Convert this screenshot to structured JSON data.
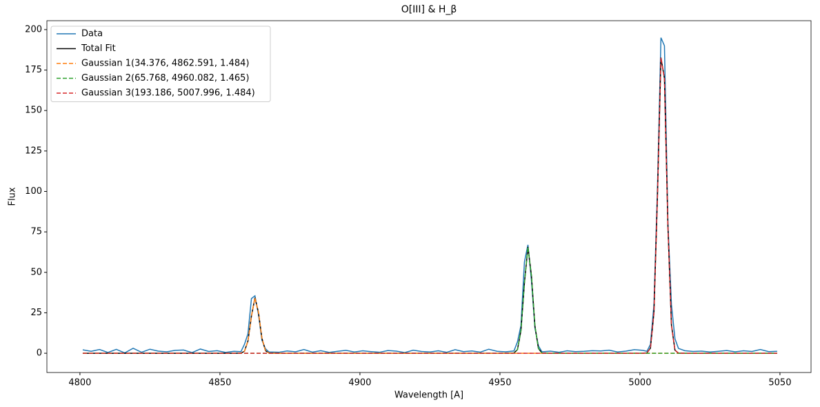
{
  "chart_data": {
    "type": "line",
    "title": "O[III] & H_β",
    "x_label": "Wavelength [A]",
    "y_label": "Flux",
    "xlim": [
      4788.2,
      5061.1
    ],
    "ylim": [
      -11.9,
      205.5
    ],
    "xticks": [
      4800,
      4850,
      4900,
      4950,
      5000,
      5050
    ],
    "yticks": [
      0,
      25,
      50,
      75,
      100,
      125,
      150,
      175,
      200
    ],
    "grid": false,
    "legend": "upper left",
    "x": [
      4801,
      4804,
      4807,
      4810,
      4813,
      4816,
      4819,
      4822,
      4825,
      4828,
      4831,
      4834,
      4837,
      4840,
      4843,
      4846,
      4849,
      4852,
      4855,
      4857.5,
      4858.75,
      4860,
      4861.25,
      4862.5,
      4863.75,
      4865,
      4866.25,
      4867.5,
      4871,
      4874,
      4877,
      4880,
      4883,
      4886,
      4889,
      4892,
      4895,
      4898,
      4901,
      4904,
      4907,
      4910,
      4913,
      4916,
      4919,
      4922,
      4925,
      4928,
      4931,
      4934,
      4937,
      4940,
      4943,
      4946,
      4949,
      4952,
      4955,
      4956.25,
      4957.5,
      4958.75,
      4960,
      4961.25,
      4962.5,
      4963.75,
      4965,
      4968,
      4971,
      4974,
      4977,
      4980,
      4983,
      4986,
      4989,
      4992,
      4995,
      4998,
      5001,
      5002.5,
      5003.75,
      5005,
      5006.25,
      5007.5,
      5008.75,
      5010,
      5011.25,
      5012.5,
      5013.75,
      5016,
      5019,
      5022,
      5025,
      5028,
      5031,
      5034,
      5037,
      5040,
      5043,
      5046,
      5049
    ],
    "series": [
      {
        "name": "Data",
        "color": "#1f77b4",
        "linestyle": "solid",
        "values": [
          2.1,
          1.2,
          2.3,
          0.5,
          2.4,
          0.2,
          3.1,
          0.6,
          2.5,
          1.3,
          0.9,
          1.8,
          2.0,
          0.4,
          2.6,
          1.1,
          1.6,
          0.5,
          1.2,
          1.0,
          5.5,
          12.0,
          33.8,
          35.5,
          24.0,
          8.0,
          2.8,
          0.8,
          0.6,
          1.4,
          0.9,
          2.3,
          0.7,
          1.6,
          0.5,
          1.2,
          1.8,
          0.8,
          1.5,
          1.0,
          0.6,
          1.7,
          1.3,
          0.4,
          1.9,
          1.1,
          0.8,
          1.5,
          0.6,
          2.2,
          1.0,
          1.4,
          0.7,
          2.5,
          1.2,
          0.9,
          1.4,
          7.0,
          17.0,
          56.5,
          67.0,
          45.0,
          15.5,
          4.5,
          0.9,
          1.3,
          0.6,
          1.5,
          1.0,
          1.2,
          1.6,
          1.4,
          1.9,
          0.8,
          1.3,
          2.2,
          1.8,
          1.2,
          5.5,
          30.0,
          102.0,
          195.0,
          190.0,
          80.0,
          30.0,
          9.0,
          3.0,
          1.6,
          1.1,
          1.3,
          0.8,
          1.2,
          1.7,
          0.9,
          1.5,
          1.1,
          2.3,
          1.0,
          1.2
        ]
      },
      {
        "name": "Total Fit",
        "color": "#000000",
        "linestyle": "solid",
        "values": [
          0,
          0,
          0,
          0,
          0,
          0,
          0,
          0,
          0,
          0,
          0,
          0,
          0,
          0,
          0,
          0,
          0,
          0,
          0,
          0.1,
          1.2,
          7.5,
          22.9,
          34.3,
          25.3,
          9.2,
          1.6,
          0.1,
          0,
          0,
          0,
          0,
          0,
          0,
          0,
          0,
          0,
          0,
          0,
          0,
          0,
          0,
          0,
          0,
          0,
          0,
          0,
          0,
          0,
          0,
          0,
          0,
          0,
          0,
          0,
          0,
          0.2,
          2.2,
          13.9,
          43.5,
          65.7,
          47.9,
          16.8,
          2.9,
          0.2,
          0,
          0,
          0,
          0,
          0,
          0,
          0,
          0,
          0,
          0,
          0,
          0,
          0.2,
          3.2,
          25.1,
          96.7,
          182.7,
          169.8,
          77.6,
          17.5,
          1.9,
          0.1,
          0,
          0,
          0,
          0,
          0,
          0,
          0,
          0,
          0,
          0,
          0,
          0
        ]
      },
      {
        "name": "Gaussian 1(34.376, 4862.591, 1.484)",
        "color": "#ff7f0e",
        "linestyle": "dashed",
        "values": [
          0,
          0,
          0,
          0,
          0,
          0,
          0,
          0,
          0,
          0,
          0,
          0,
          0,
          0,
          0,
          0,
          0,
          0,
          0,
          0.1,
          1.2,
          7.5,
          22.9,
          34.3,
          25.3,
          9.2,
          1.6,
          0.1,
          0,
          0,
          0,
          0,
          0,
          0,
          0,
          0,
          0,
          0,
          0,
          0,
          0,
          0,
          0,
          0,
          0,
          0,
          0,
          0,
          0,
          0,
          0,
          0,
          0,
          0,
          0,
          0,
          0,
          0,
          0,
          0,
          0,
          0,
          0,
          0,
          0,
          0,
          0,
          0,
          0,
          0,
          0,
          0,
          0,
          0,
          0,
          0,
          0,
          0,
          0,
          0,
          0,
          0,
          0,
          0,
          0,
          0,
          0,
          0,
          0,
          0,
          0,
          0,
          0,
          0,
          0,
          0,
          0,
          0,
          0
        ]
      },
      {
        "name": "Gaussian 2(65.768, 4960.082, 1.465)",
        "color": "#2ca02c",
        "linestyle": "dashed",
        "values": [
          0,
          0,
          0,
          0,
          0,
          0,
          0,
          0,
          0,
          0,
          0,
          0,
          0,
          0,
          0,
          0,
          0,
          0,
          0,
          0,
          0,
          0,
          0,
          0,
          0,
          0,
          0,
          0,
          0,
          0,
          0,
          0,
          0,
          0,
          0,
          0,
          0,
          0,
          0,
          0,
          0,
          0,
          0,
          0,
          0,
          0,
          0,
          0,
          0,
          0,
          0,
          0,
          0,
          0,
          0,
          0,
          0.2,
          2.2,
          13.9,
          43.5,
          65.7,
          47.9,
          16.8,
          2.9,
          0.2,
          0,
          0,
          0,
          0,
          0,
          0,
          0,
          0,
          0,
          0,
          0,
          0,
          0,
          0,
          0,
          0,
          0,
          0,
          0,
          0,
          0,
          0,
          0,
          0,
          0,
          0,
          0,
          0,
          0,
          0,
          0,
          0,
          0,
          0
        ]
      },
      {
        "name": "Gaussian 3(193.186, 5007.996, 1.484)",
        "color": "#d62728",
        "linestyle": "dashed",
        "values": [
          0,
          0,
          0,
          0,
          0,
          0,
          0,
          0,
          0,
          0,
          0,
          0,
          0,
          0,
          0,
          0,
          0,
          0,
          0,
          0,
          0,
          0,
          0,
          0,
          0,
          0,
          0,
          0,
          0,
          0,
          0,
          0,
          0,
          0,
          0,
          0,
          0,
          0,
          0,
          0,
          0,
          0,
          0,
          0,
          0,
          0,
          0,
          0,
          0,
          0,
          0,
          0,
          0,
          0,
          0,
          0,
          0,
          0,
          0,
          0,
          0,
          0,
          0,
          0,
          0,
          0,
          0,
          0,
          0,
          0,
          0,
          0,
          0,
          0,
          0,
          0,
          0,
          0.2,
          3.2,
          25.1,
          96.7,
          182.7,
          169.8,
          77.6,
          17.5,
          1.9,
          0.1,
          0,
          0,
          0,
          0,
          0,
          0,
          0,
          0,
          0,
          0,
          0,
          0
        ]
      }
    ]
  }
}
